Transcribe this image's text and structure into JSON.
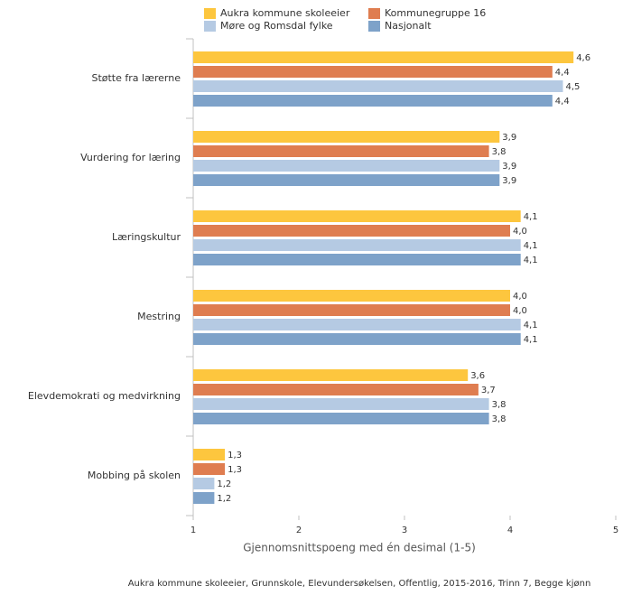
{
  "chart_data": {
    "type": "hbar",
    "categories": [
      "Støtte fra lærerne",
      "Vurdering for læring",
      "Læringskultur",
      "Mestring",
      "Elevdemokrati og medvirkning",
      "Mobbing på skolen"
    ],
    "series": [
      {
        "name": "Aukra kommune skoleeier",
        "color": "#fdc63e",
        "values": [
          4.6,
          3.9,
          4.1,
          4.0,
          3.6,
          1.3
        ],
        "value_labels": [
          "4,6",
          "3,9",
          "4,1",
          "4,0",
          "3,6",
          "1,3"
        ]
      },
      {
        "name": "Kommunegruppe 16",
        "color": "#df7d50",
        "values": [
          4.4,
          3.8,
          4.0,
          4.0,
          3.7,
          1.3
        ],
        "value_labels": [
          "4,4",
          "3,8",
          "4,0",
          "4,0",
          "3,7",
          "1,3"
        ]
      },
      {
        "name": "Møre og Romsdal fylke",
        "color": "#b5cae3",
        "values": [
          4.5,
          3.9,
          4.1,
          4.1,
          3.8,
          1.2
        ],
        "value_labels": [
          "4,5",
          "3,9",
          "4,1",
          "4,1",
          "3,8",
          "1,2"
        ]
      },
      {
        "name": "Nasjonalt",
        "color": "#7ea2c9",
        "values": [
          4.4,
          3.9,
          4.1,
          4.1,
          3.8,
          1.2
        ],
        "value_labels": [
          "4,4",
          "3,9",
          "4,1",
          "4,1",
          "3,8",
          "1,2"
        ]
      }
    ],
    "xlabel": "Gjennomsnittspoeng med én desimal (1-5)",
    "xlim": [
      1,
      5
    ],
    "xticks": [
      1,
      2,
      3,
      4,
      5
    ],
    "source": "Aukra kommune skoleeier, Grunnskole, Elevundersøkelsen, Offentlig, 2015-2016, Trinn 7, Begge kjønn"
  }
}
